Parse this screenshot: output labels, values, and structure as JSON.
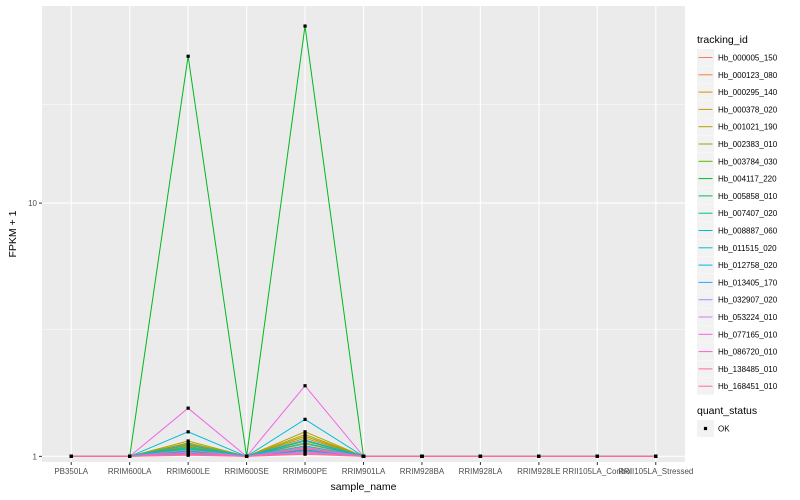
{
  "chart_data": {
    "type": "line",
    "xlabel": "sample_name",
    "ylabel": "FPKM + 1",
    "y_scale": "log10",
    "ylim": [
      0.95,
      60
    ],
    "y_ticks": [
      1,
      10
    ],
    "y_tick_labels": [
      "1",
      "10"
    ],
    "grid": true,
    "legend_placement": "right",
    "background_color": "#ebebeb",
    "grid_color": "#ffffff",
    "categories": [
      "PB350LA",
      "RRIM600LA",
      "RRIM600LE",
      "RRIM600SE",
      "RRIM600PE",
      "RRIM901LA",
      "RRIM928BA",
      "RRIM928LA",
      "RRIM928LE",
      "RRII105LA_Control",
      "RRII105LA_Stressed"
    ],
    "legend_title": "tracking_id",
    "series": [
      {
        "name": "Hb_000005_150",
        "color": "#F8766D",
        "values": [
          1,
          1,
          1.04,
          1,
          1.08,
          1,
          1,
          1,
          1,
          1,
          1
        ]
      },
      {
        "name": "Hb_000123_080",
        "color": "#EC8239",
        "values": [
          1,
          1,
          1.06,
          1,
          1.12,
          1,
          1,
          1,
          1,
          1,
          1
        ]
      },
      {
        "name": "Hb_000295_140",
        "color": "#DB8E00",
        "values": [
          1,
          1,
          1.1,
          1,
          1.18,
          1,
          1,
          1,
          1,
          1,
          1
        ]
      },
      {
        "name": "Hb_000378_020",
        "color": "#C79800",
        "values": [
          1,
          1,
          1.12,
          1,
          1.22,
          1,
          1,
          1,
          1,
          1,
          1
        ]
      },
      {
        "name": "Hb_001021_190",
        "color": "#AEA200",
        "values": [
          1,
          1,
          1.15,
          1,
          1.25,
          1,
          1,
          1,
          1,
          1,
          1
        ]
      },
      {
        "name": "Hb_002383_010",
        "color": "#8FAA00",
        "values": [
          1,
          1,
          1.13,
          1,
          1.2,
          1,
          1,
          1,
          1,
          1,
          1
        ]
      },
      {
        "name": "Hb_003784_030",
        "color": "#64B200",
        "values": [
          1,
          1,
          1.09,
          1,
          1.15,
          1,
          1,
          1,
          1,
          1,
          1
        ]
      },
      {
        "name": "Hb_004117_220",
        "color": "#00B81B",
        "values": [
          1,
          1,
          38,
          1,
          50,
          1,
          1,
          1,
          1,
          1,
          1
        ]
      },
      {
        "name": "Hb_005858_010",
        "color": "#00BD5C",
        "values": [
          1,
          1,
          1.05,
          1,
          1.06,
          1,
          1,
          1,
          1,
          1,
          1
        ]
      },
      {
        "name": "Hb_007407_020",
        "color": "#00C08E",
        "values": [
          1,
          1,
          1.07,
          1,
          1.1,
          1,
          1,
          1,
          1,
          1,
          1
        ]
      },
      {
        "name": "Hb_008887_060",
        "color": "#00C1B2",
        "values": [
          1,
          1,
          1.08,
          1,
          1.13,
          1,
          1,
          1,
          1,
          1,
          1
        ]
      },
      {
        "name": "Hb_011515_020",
        "color": "#00BCD6",
        "values": [
          1,
          1,
          1.25,
          1,
          1.4,
          1,
          1,
          1,
          1,
          1,
          1
        ]
      },
      {
        "name": "Hb_012758_020",
        "color": "#00B3F2",
        "values": [
          1,
          1,
          1.11,
          1,
          1.16,
          1,
          1,
          1,
          1,
          1,
          1
        ]
      },
      {
        "name": "Hb_013405_170",
        "color": "#29A3FF",
        "values": [
          1,
          1,
          1.03,
          1,
          1.05,
          1,
          1,
          1,
          1,
          1,
          1
        ]
      },
      {
        "name": "Hb_032907_020",
        "color": "#9C8DFF",
        "values": [
          1,
          1,
          1.06,
          1,
          1.09,
          1,
          1,
          1,
          1,
          1,
          1
        ]
      },
      {
        "name": "Hb_053224_010",
        "color": "#D277FF",
        "values": [
          1,
          1,
          1.02,
          1,
          1.04,
          1,
          1,
          1,
          1,
          1,
          1
        ]
      },
      {
        "name": "Hb_077165_010",
        "color": "#F166E8",
        "values": [
          1,
          1,
          1.55,
          1,
          1.9,
          1,
          1,
          1,
          1,
          1,
          1
        ]
      },
      {
        "name": "Hb_086720_010",
        "color": "#FF61C7",
        "values": [
          1,
          1,
          1.04,
          1,
          1.07,
          1,
          1,
          1,
          1,
          1,
          1
        ]
      },
      {
        "name": "Hb_138485_010",
        "color": "#FF689E",
        "values": [
          1,
          1,
          1.02,
          1,
          1.03,
          1,
          1,
          1,
          1,
          1,
          1
        ]
      },
      {
        "name": "Hb_168451_010",
        "color": "#FF6C91",
        "values": [
          1,
          1,
          1.01,
          1,
          1.02,
          1,
          1,
          1,
          1,
          1,
          1
        ]
      }
    ],
    "quant_status": {
      "legend_title": "quant_status",
      "entries": [
        "OK"
      ],
      "marker": "square",
      "color": "#000000"
    }
  }
}
